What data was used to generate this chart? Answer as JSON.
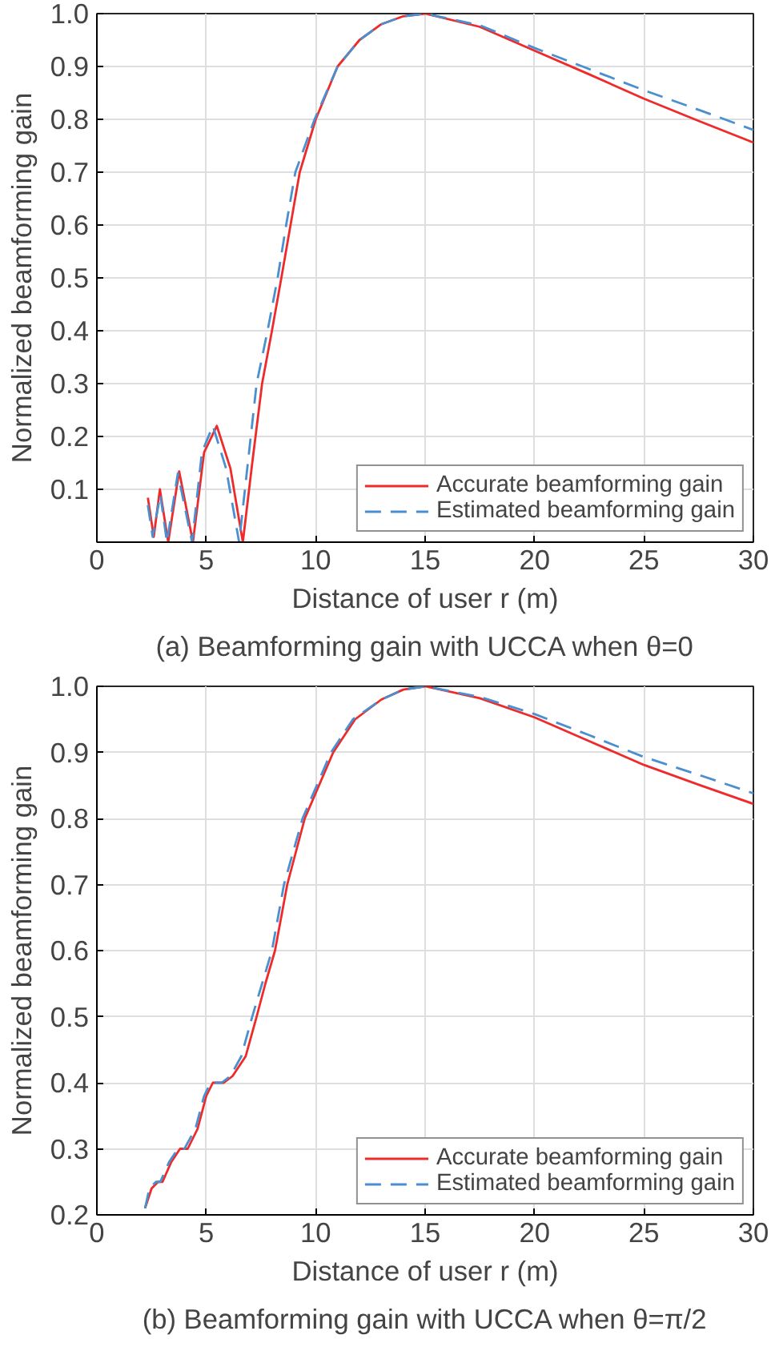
{
  "chart_data": [
    {
      "type": "line",
      "xlabel": "Distance of user r (m)",
      "ylabel": "Normalized beamforming gain",
      "annotations": [
        "(a) Beamforming gain with UCCA when θ=0"
      ],
      "xlim": [
        0,
        30
      ],
      "ylim": [
        0,
        1
      ],
      "xticks": [
        0,
        5,
        10,
        15,
        20,
        25,
        30
      ],
      "yticks": [
        0.1,
        0.2,
        0.3,
        0.4,
        0.5,
        0.6,
        0.7,
        0.8,
        0.9,
        {
          "value": 1.0,
          "label": "1.0"
        }
      ],
      "grid": true,
      "legend": "bottom right",
      "marker": "none",
      "series": [
        {
          "name": "Accurate beamforming gain",
          "color": "#ee2a2a",
          "line_style": "solid",
          "x": [
            2.33,
            2.6,
            2.88,
            3.26,
            3.76,
            4.39,
            4.9,
            5.48,
            6.1,
            6.67,
            7.1,
            7.55,
            8.0,
            8.43,
            8.85,
            9.27,
            10.0,
            11.0,
            12.0,
            13.0,
            14.0,
            15.0,
            17.5,
            20.0,
            22.5,
            25.0,
            27.5,
            30.0
          ],
          "values": [
            0.084,
            0.01,
            0.1,
            0.0,
            0.134,
            0.0,
            0.17,
            0.22,
            0.14,
            0.0,
            0.15,
            0.3,
            0.4,
            0.5,
            0.6,
            0.7,
            0.8,
            0.9,
            0.95,
            0.98,
            0.995,
            1.0,
            0.975,
            0.93,
            0.885,
            0.839,
            0.797,
            0.756
          ]
        },
        {
          "name": "Estimated beamforming gain",
          "color": "#4a8fd0",
          "line_style": "dashed",
          "x": [
            2.33,
            2.55,
            2.9,
            3.2,
            3.7,
            4.35,
            4.8,
            5.3,
            5.9,
            6.5,
            6.9,
            7.3,
            7.8,
            8.26,
            8.65,
            9.07,
            9.95,
            11.0,
            12.0,
            13.0,
            14.0,
            15.0,
            17.5,
            20.0,
            22.5,
            25.0,
            27.5,
            30.0
          ],
          "values": [
            0.07,
            0.01,
            0.09,
            0.0,
            0.13,
            0.0,
            0.17,
            0.22,
            0.14,
            0.0,
            0.15,
            0.3,
            0.4,
            0.5,
            0.6,
            0.7,
            0.8,
            0.9,
            0.95,
            0.98,
            0.995,
            1.0,
            0.978,
            0.935,
            0.895,
            0.855,
            0.818,
            0.78
          ]
        }
      ]
    },
    {
      "type": "line",
      "xlabel": "Distance of user r (m)",
      "ylabel": "Normalized beamforming gain",
      "annotations": [
        "(b) Beamforming gain with UCCA when θ=π/2"
      ],
      "xlim": [
        0,
        30
      ],
      "ylim": [
        0.2,
        1
      ],
      "xticks": [
        0,
        5,
        10,
        15,
        20,
        25,
        30
      ],
      "yticks": [
        0.2,
        0.3,
        0.4,
        0.5,
        0.6,
        0.7,
        0.8,
        0.9,
        {
          "value": 1.0,
          "label": "1.0"
        }
      ],
      "grid": true,
      "legend": "bottom right",
      "marker": "none",
      "series": [
        {
          "name": "Accurate beamforming gain",
          "color": "#ee2a2a",
          "line_style": "solid",
          "x": [
            2.2,
            2.5,
            2.8,
            3.0,
            3.4,
            3.8,
            4.15,
            4.6,
            5.0,
            5.3,
            5.8,
            6.2,
            6.8,
            7.3,
            7.7,
            8.14,
            8.7,
            9.5,
            10.8,
            11.8,
            13.0,
            14.0,
            15.0,
            17.5,
            20.0,
            22.5,
            25.0,
            27.5,
            30.0
          ],
          "values": [
            0.21,
            0.24,
            0.25,
            0.25,
            0.28,
            0.3,
            0.3,
            0.33,
            0.38,
            0.4,
            0.4,
            0.41,
            0.44,
            0.5,
            0.55,
            0.6,
            0.7,
            0.8,
            0.9,
            0.95,
            0.98,
            0.995,
            1.0,
            0.982,
            0.953,
            0.917,
            0.881,
            0.851,
            0.822
          ]
        },
        {
          "name": "Estimated beamforming gain",
          "color": "#4a8fd0",
          "line_style": "dashed",
          "x": [
            2.2,
            2.4,
            2.7,
            2.9,
            3.3,
            3.7,
            4.0,
            4.5,
            4.9,
            5.2,
            5.7,
            6.1,
            6.6,
            7.1,
            7.55,
            8.0,
            8.55,
            9.4,
            10.7,
            11.7,
            13.0,
            14.0,
            15.0,
            17.5,
            20.0,
            22.5,
            25.0,
            27.5,
            30.0
          ],
          "values": [
            0.21,
            0.24,
            0.25,
            0.25,
            0.28,
            0.3,
            0.3,
            0.33,
            0.38,
            0.4,
            0.4,
            0.41,
            0.44,
            0.5,
            0.55,
            0.6,
            0.7,
            0.8,
            0.9,
            0.95,
            0.98,
            0.995,
            1.0,
            0.984,
            0.958,
            0.926,
            0.893,
            0.866,
            0.838
          ]
        }
      ]
    }
  ]
}
